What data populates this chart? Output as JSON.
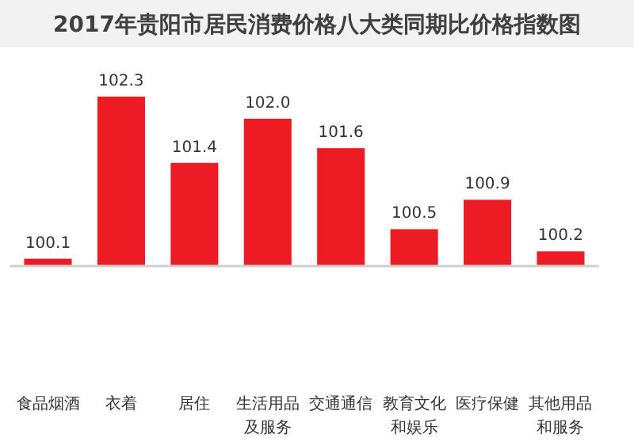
{
  "chart_data": {
    "type": "bar",
    "title": "2017年贵阳市居民消费价格八大类同期比价格指数图",
    "categories": [
      "食品烟酒",
      "衣着",
      "居住",
      "生活用品及服务",
      "交通通信",
      "教育文化和娱乐",
      "医疗保健",
      "其他用品和服务"
    ],
    "values": [
      100.1,
      102.3,
      101.4,
      102.0,
      101.6,
      100.5,
      100.9,
      100.2
    ],
    "value_labels": [
      "100.1",
      "102.3",
      "101.4",
      "102.0",
      "101.6",
      "100.5",
      "100.9",
      "100.2"
    ],
    "color": "#ed1c24",
    "ylim": [
      100,
      102.3
    ],
    "tick_labels": "x"
  }
}
